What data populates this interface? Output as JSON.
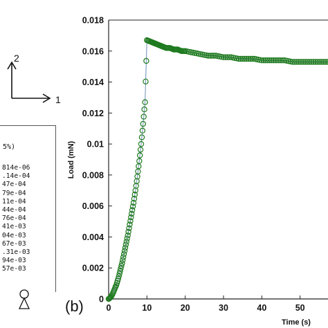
{
  "panel_label": "(b)",
  "coord_axes": {
    "vertical_label": "2",
    "horizontal_label": "1"
  },
  "legend": {
    "title": "5%)",
    "values": [
      "814e-06",
      ".14e-04",
      "47e-04",
      "79e-04",
      "11e-04",
      "44e-04",
      "76e-04",
      "41e-03",
      "04e-03",
      "67e-03",
      ".31e-03",
      "94e-03",
      "57e-03"
    ]
  },
  "chart_data": {
    "type": "scatter",
    "title": "",
    "xlabel": "Time (s)",
    "ylabel": "Load (mN)",
    "xlim": [
      0,
      60
    ],
    "ylim": [
      0,
      0.018
    ],
    "x_ticks": [
      "0",
      "10",
      "20",
      "30",
      "40",
      "50"
    ],
    "y_ticks": [
      "0",
      "0.002",
      "0.004",
      "0.006",
      "0.008",
      "0.01",
      "0.012",
      "0.014",
      "0.016",
      "0.018"
    ],
    "grid": false,
    "series": [
      {
        "name": "",
        "color": "#1e7a1e",
        "marker": "open-circle",
        "points": [
          [
            0,
            0
          ],
          [
            0.5,
            0.0001
          ],
          [
            1,
            0.0003
          ],
          [
            1.5,
            0.0006
          ],
          [
            2,
            0.0009
          ],
          [
            2.5,
            0.0013
          ],
          [
            3,
            0.0018
          ],
          [
            3.5,
            0.0023
          ],
          [
            4,
            0.0029
          ],
          [
            4.5,
            0.0035
          ],
          [
            5,
            0.0041
          ],
          [
            5.5,
            0.0048
          ],
          [
            6,
            0.0055
          ],
          [
            6.5,
            0.0062
          ],
          [
            7,
            0.007
          ],
          [
            7.5,
            0.0079
          ],
          [
            8,
            0.0089
          ],
          [
            8.5,
            0.01
          ],
          [
            9,
            0.0113
          ],
          [
            9.5,
            0.0127
          ],
          [
            10,
            0.0167
          ],
          [
            11,
            0.0166
          ],
          [
            12,
            0.0165
          ],
          [
            13,
            0.0164
          ],
          [
            14,
            0.0163
          ],
          [
            15,
            0.0162
          ],
          [
            16,
            0.0162
          ],
          [
            17,
            0.0161
          ],
          [
            18,
            0.0161
          ],
          [
            19,
            0.016
          ],
          [
            20,
            0.016
          ],
          [
            22,
            0.0159
          ],
          [
            24,
            0.0158
          ],
          [
            26,
            0.0157
          ],
          [
            28,
            0.0157
          ],
          [
            30,
            0.0156
          ],
          [
            32,
            0.0156
          ],
          [
            34,
            0.0155
          ],
          [
            36,
            0.0155
          ],
          [
            38,
            0.0155
          ],
          [
            40,
            0.0154
          ],
          [
            42,
            0.0154
          ],
          [
            44,
            0.0154
          ],
          [
            46,
            0.0154
          ],
          [
            48,
            0.0153
          ],
          [
            50,
            0.0153
          ],
          [
            52,
            0.0153
          ],
          [
            54,
            0.0153
          ],
          [
            56,
            0.0153
          ],
          [
            58,
            0.0153
          ],
          [
            60,
            0.0152
          ]
        ]
      }
    ]
  }
}
